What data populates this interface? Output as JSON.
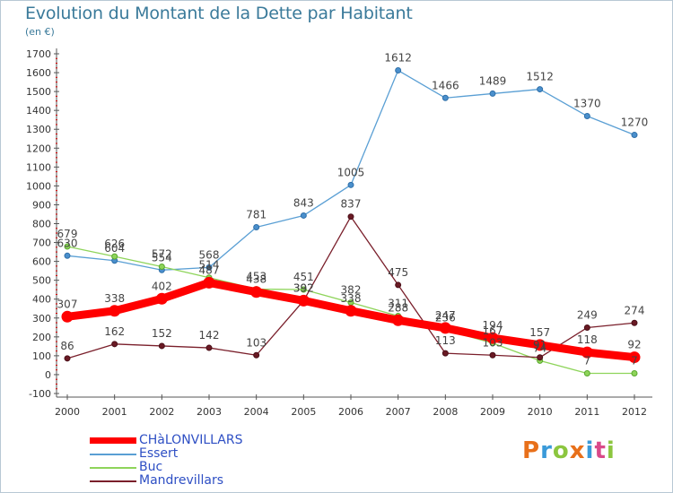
{
  "header": {
    "title": "Evolution du Montant de la Dette par Habitant",
    "unit": "(en €)"
  },
  "logo": {
    "text": "Proxiti",
    "letters": [
      "P",
      "r",
      "o",
      "x",
      "i",
      "t",
      "i"
    ],
    "colors": [
      "#e8701a",
      "#3a9ad9",
      "#8cc63f",
      "#e8701a",
      "#3a9ad9",
      "#d94a8a",
      "#8cc63f"
    ]
  },
  "chart_data": {
    "type": "line",
    "title": "Evolution du Montant de la Dette par Habitant",
    "ylabel": "(en €)",
    "xlabel": "",
    "ylim": [
      -100,
      1700
    ],
    "yticks": [
      -100,
      0,
      100,
      200,
      300,
      400,
      500,
      600,
      700,
      800,
      900,
      1000,
      1100,
      1200,
      1300,
      1400,
      1500,
      1600,
      1700
    ],
    "categories": [
      "2000",
      "2001",
      "2002",
      "2003",
      "2004",
      "2005",
      "2006",
      "2007",
      "2008",
      "2009",
      "2010",
      "2011",
      "2012"
    ],
    "grid": false,
    "legend_position": "bottom-left",
    "series": [
      {
        "name": "CHàLONVILLARS",
        "color": "#ff0000",
        "values": [
          307,
          338,
          402,
          487,
          438,
          392,
          338,
          288,
          247,
          194,
          157,
          118,
          92
        ],
        "labels": [
          "307",
          "338",
          "402",
          "487",
          "438",
          "392",
          "338",
          "288",
          "247",
          "194",
          "157",
          "118",
          "92"
        ]
      },
      {
        "name": "Essert",
        "color": "#5a9fd4",
        "values": [
          630,
          604,
          554,
          568,
          781,
          843,
          1005,
          1612,
          1466,
          1489,
          1512,
          1370,
          1270
        ],
        "labels": [
          "630",
          "604",
          "554",
          "568",
          "781",
          "843",
          "1005",
          "1612",
          "1466",
          "1489",
          "1512",
          "1370",
          "1270"
        ]
      },
      {
        "name": "Buc",
        "color": "#8ed45a",
        "values": [
          679,
          626,
          572,
          514,
          453,
          451,
          382,
          311,
          236,
          167,
          74,
          7,
          7
        ],
        "labels": [
          "679",
          "626",
          "572",
          "514",
          "453",
          "451",
          "382",
          "311",
          "236",
          "167",
          "74",
          "7",
          "7"
        ]
      },
      {
        "name": "Mandrevillars",
        "color": "#7a1f2b",
        "values": [
          86,
          162,
          152,
          142,
          103,
          392,
          837,
          475,
          113,
          103,
          91,
          249,
          274
        ],
        "labels": [
          "86",
          "162",
          "152",
          "142",
          "103",
          "392",
          "837",
          "475",
          "113",
          "103",
          "91",
          "249",
          "274"
        ]
      }
    ]
  }
}
